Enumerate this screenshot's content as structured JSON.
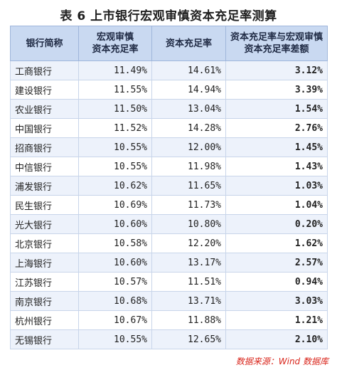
{
  "title": "表 6 上市银行宏观审慎资本充足率测算",
  "headers": {
    "bank": "银行简称",
    "macro_line1": "宏观审慎",
    "macro_line2": "资本充足率",
    "car": "资本充足率",
    "diff_line1": "资本充足率与宏观审慎",
    "diff_line2": "资本充足率差额"
  },
  "rows": [
    {
      "bank": "工商银行",
      "macro": "11.49%",
      "car": "14.61%",
      "diff": "3.12%"
    },
    {
      "bank": "建设银行",
      "macro": "11.55%",
      "car": "14.94%",
      "diff": "3.39%"
    },
    {
      "bank": "农业银行",
      "macro": "11.50%",
      "car": "13.04%",
      "diff": "1.54%"
    },
    {
      "bank": "中国银行",
      "macro": "11.52%",
      "car": "14.28%",
      "diff": "2.76%"
    },
    {
      "bank": "招商银行",
      "macro": "10.55%",
      "car": "12.00%",
      "diff": "1.45%"
    },
    {
      "bank": "中信银行",
      "macro": "10.55%",
      "car": "11.98%",
      "diff": "1.43%"
    },
    {
      "bank": "浦发银行",
      "macro": "10.62%",
      "car": "11.65%",
      "diff": "1.03%"
    },
    {
      "bank": "民生银行",
      "macro": "10.69%",
      "car": "11.73%",
      "diff": "1.04%"
    },
    {
      "bank": "光大银行",
      "macro": "10.60%",
      "car": "10.80%",
      "diff": "0.20%"
    },
    {
      "bank": "北京银行",
      "macro": "10.58%",
      "car": "12.20%",
      "diff": "1.62%"
    },
    {
      "bank": "上海银行",
      "macro": "10.60%",
      "car": "13.17%",
      "diff": "2.57%"
    },
    {
      "bank": "江苏银行",
      "macro": "10.57%",
      "car": "11.51%",
      "diff": "0.94%"
    },
    {
      "bank": "南京银行",
      "macro": "10.68%",
      "car": "13.71%",
      "diff": "3.03%"
    },
    {
      "bank": "杭州银行",
      "macro": "10.67%",
      "car": "11.88%",
      "diff": "1.21%"
    },
    {
      "bank": "无锡银行",
      "macro": "10.55%",
      "car": "12.65%",
      "diff": "2.10%"
    }
  ],
  "source": "数据来源：Wind 数据库"
}
